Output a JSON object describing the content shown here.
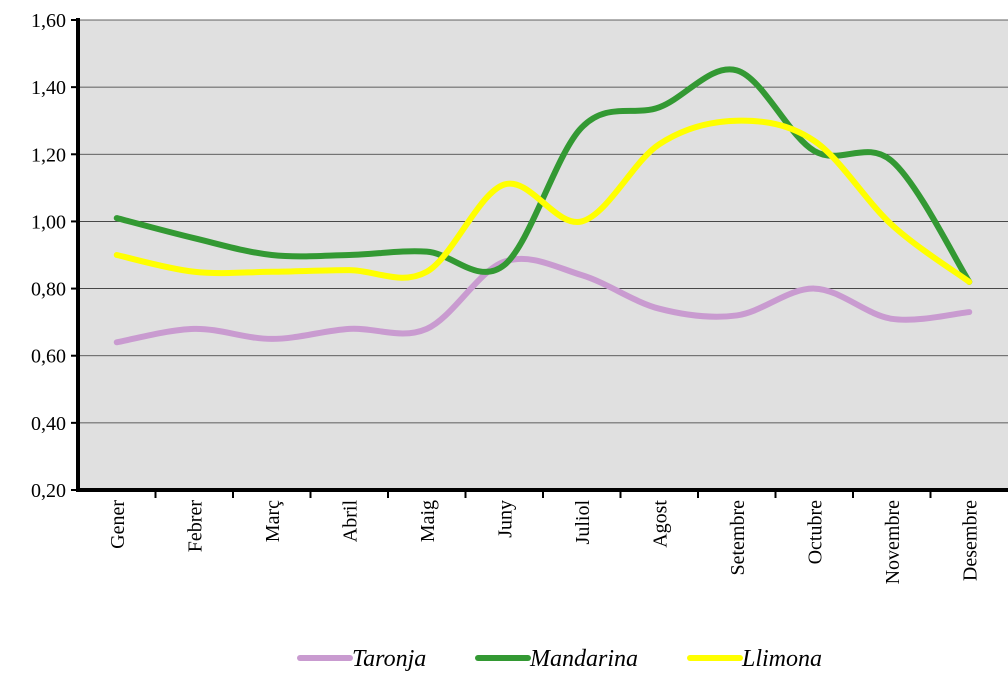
{
  "chart_data": {
    "type": "line",
    "categories": [
      "Gener",
      "Febrer",
      "Març",
      "Abril",
      "Maig",
      "Juny",
      "Juliol",
      "Agost",
      "Setembre",
      "Octubre",
      "Novembre",
      "Desembre"
    ],
    "series": [
      {
        "name": "Taronja",
        "color": "#c99bd0",
        "values": [
          0.64,
          0.68,
          0.65,
          0.68,
          0.68,
          0.88,
          0.84,
          0.74,
          0.72,
          0.8,
          0.71,
          0.73
        ]
      },
      {
        "name": "Mandarina",
        "color": "#339933",
        "values": [
          1.01,
          0.95,
          0.9,
          0.9,
          0.91,
          0.87,
          1.28,
          1.34,
          1.45,
          1.21,
          1.18,
          0.82
        ]
      },
      {
        "name": "Llimona",
        "color": "#ffff00",
        "values": [
          0.9,
          0.85,
          0.85,
          0.855,
          0.85,
          1.11,
          1.0,
          1.23,
          1.3,
          1.24,
          0.99,
          0.82
        ]
      }
    ],
    "ylim": [
      0.2,
      1.6
    ],
    "yticks": [
      {
        "value": 0.2,
        "label": "0,20"
      },
      {
        "value": 0.4,
        "label": "0,40"
      },
      {
        "value": 0.6,
        "label": "0,60"
      },
      {
        "value": 0.8,
        "label": "0,80"
      },
      {
        "value": 1.0,
        "label": "1,00"
      },
      {
        "value": 1.2,
        "label": "1,20"
      },
      {
        "value": 1.4,
        "label": "1,40"
      },
      {
        "value": 1.6,
        "label": "1,60"
      }
    ],
    "grid": true,
    "legend": "bottom"
  }
}
